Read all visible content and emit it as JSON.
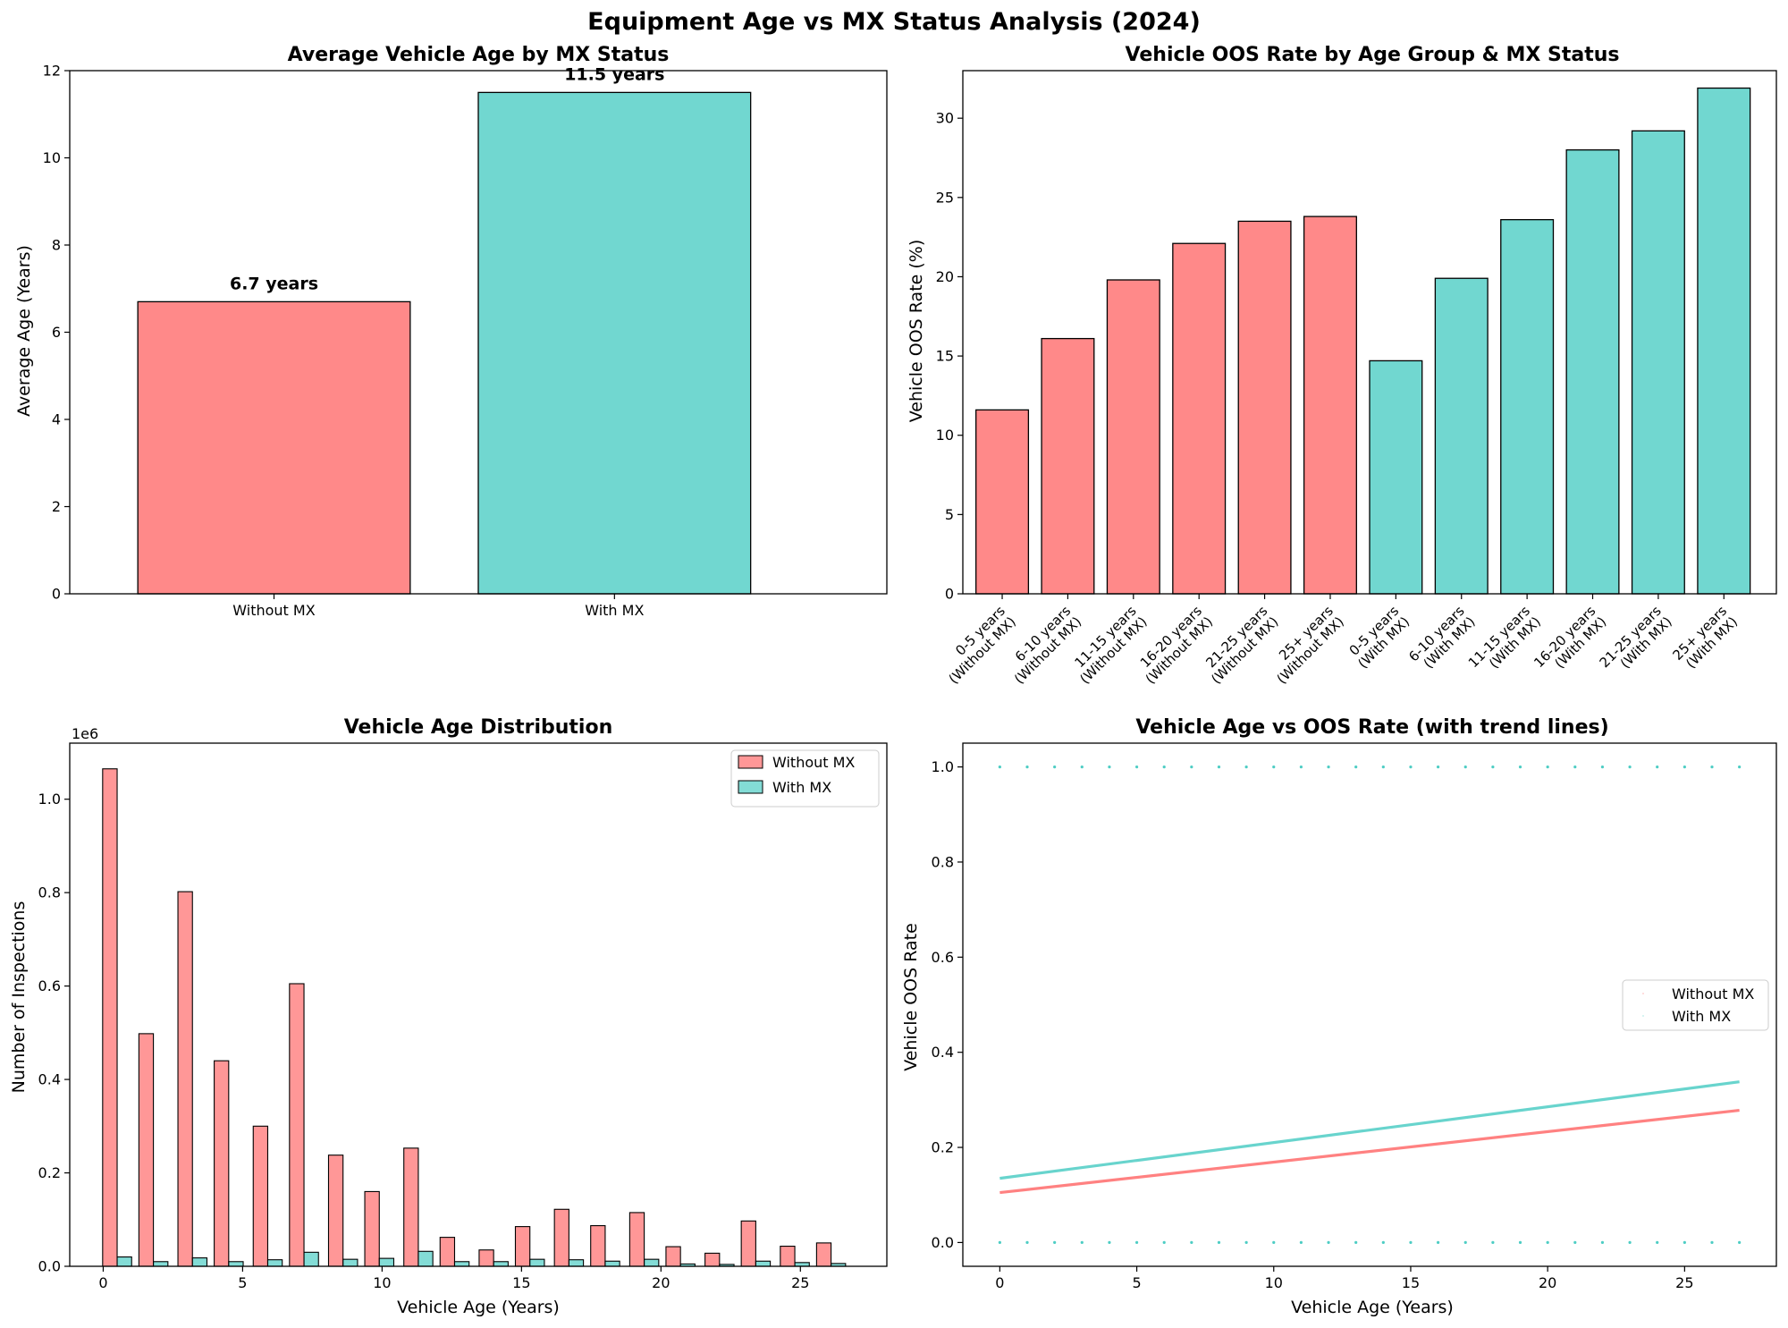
{
  "figure": {
    "title": "Equipment Age vs MX Status Analysis (2024)"
  },
  "colors": {
    "without_mx": "#FF6B6B",
    "with_mx": "#4ECDC4",
    "edge": "#000000"
  },
  "chart_data": [
    {
      "id": "avg-age",
      "type": "bar",
      "title": "Average Vehicle Age by MX Status",
      "xlabel": "",
      "ylabel": "Average Age (Years)",
      "ylim": [
        0,
        12
      ],
      "yticks": [
        "0",
        "2",
        "4",
        "6",
        "8",
        "10",
        "12"
      ],
      "categories": [
        "Without MX",
        "With MX"
      ],
      "values": [
        6.7,
        11.5
      ],
      "data_labels": [
        "6.7 years",
        "11.5 years"
      ]
    },
    {
      "id": "oos-rate-by-group",
      "type": "bar",
      "title": "Vehicle OOS Rate by Age Group & MX Status",
      "xlabel": "",
      "ylabel": "Vehicle OOS Rate (%)",
      "ylim": [
        0,
        33
      ],
      "yticks": [
        "0",
        "5",
        "10",
        "15",
        "20",
        "25",
        "30"
      ],
      "categories": [
        [
          "0-5 years",
          "(Without MX)"
        ],
        [
          "6-10 years",
          "(Without MX)"
        ],
        [
          "11-15 years",
          "(Without MX)"
        ],
        [
          "16-20 years",
          "(Without MX)"
        ],
        [
          "21-25 years",
          "(Without MX)"
        ],
        [
          "25+ years",
          "(Without MX)"
        ],
        [
          "0-5 years",
          "(With MX)"
        ],
        [
          "6-10 years",
          "(With MX)"
        ],
        [
          "11-15 years",
          "(With MX)"
        ],
        [
          "16-20 years",
          "(With MX)"
        ],
        [
          "21-25 years",
          "(With MX)"
        ],
        [
          "25+ years",
          "(With MX)"
        ]
      ],
      "values": [
        11.6,
        16.1,
        19.8,
        22.1,
        23.5,
        23.8,
        14.7,
        19.9,
        23.6,
        28.0,
        29.2,
        31.9
      ],
      "groups": [
        "without",
        "without",
        "without",
        "without",
        "without",
        "without",
        "with",
        "with",
        "with",
        "with",
        "with",
        "with"
      ]
    },
    {
      "id": "age-distribution",
      "type": "bar",
      "title": "Vehicle Age Distribution",
      "xlabel": "Vehicle Age (Years)",
      "ylabel": "Number of Inspections",
      "offset_label": "1e6",
      "xlim": [
        -1.2,
        28.1
      ],
      "ylim": [
        0,
        1.12
      ],
      "xticks": [
        0,
        5,
        10,
        15,
        20,
        25
      ],
      "yticks": [
        "0.0",
        "0.2",
        "0.4",
        "0.6",
        "0.8",
        "1.0"
      ],
      "bin_centers": [
        0.5,
        1.8,
        3.2,
        4.5,
        5.9,
        7.2,
        8.6,
        9.9,
        11.3,
        12.6,
        14.0,
        15.3,
        16.7,
        18.0,
        19.4,
        20.7,
        22.1,
        23.4,
        24.8,
        26.1
      ],
      "series": [
        {
          "name": "Without MX",
          "values": [
            1.065,
            0.498,
            0.802,
            0.44,
            0.3,
            0.605,
            0.238,
            0.16,
            0.253,
            0.062,
            0.035,
            0.085,
            0.122,
            0.087,
            0.115,
            0.042,
            0.028,
            0.097,
            0.043,
            0.05
          ]
        },
        {
          "name": "With MX",
          "values": [
            0.02,
            0.01,
            0.018,
            0.01,
            0.014,
            0.03,
            0.015,
            0.017,
            0.032,
            0.01,
            0.01,
            0.015,
            0.014,
            0.011,
            0.015,
            0.005,
            0.004,
            0.011,
            0.008,
            0.006
          ]
        }
      ],
      "legend_position": "top-right"
    },
    {
      "id": "age-vs-oos",
      "type": "scatter",
      "title": "Vehicle Age vs OOS Rate (with trend lines)",
      "xlabel": "Vehicle Age (Years)",
      "ylabel": "Vehicle OOS Rate",
      "xlim": [
        -1.35,
        28.35
      ],
      "ylim": [
        -0.05,
        1.05
      ],
      "xticks": [
        0,
        5,
        10,
        15,
        20,
        25
      ],
      "yticks": [
        "0.0",
        "0.2",
        "0.4",
        "0.6",
        "0.8",
        "1.0"
      ],
      "points_x": [
        0,
        1,
        2,
        3,
        4,
        5,
        6,
        7,
        8,
        9,
        10,
        11,
        12,
        13,
        14,
        15,
        16,
        17,
        18,
        19,
        20,
        21,
        22,
        23,
        24,
        25,
        26,
        27
      ],
      "points_y": [
        0,
        1
      ],
      "series": [
        {
          "name": "Without MX",
          "trend": [
            [
              0,
              0.105
            ],
            [
              27,
              0.278
            ]
          ]
        },
        {
          "name": "With MX",
          "trend": [
            [
              0,
              0.135
            ],
            [
              27,
              0.338
            ]
          ]
        }
      ],
      "legend_position": "center-right"
    }
  ]
}
